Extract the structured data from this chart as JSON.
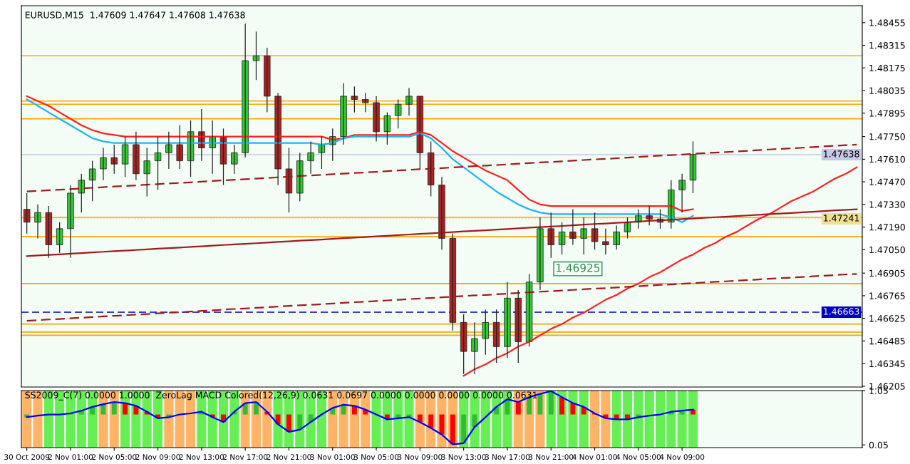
{
  "chart_data": [
    {
      "type": "candlestick",
      "title": "EURUSD,M15  1.47609 1.47647 1.47608 1.47638",
      "tick_labels": "y",
      "grid": false,
      "legend": false,
      "categories": [
        null,
        null,
        null,
        null,
        null,
        null,
        null,
        null,
        null,
        null,
        null,
        null,
        null,
        null,
        null,
        null,
        null,
        null,
        null,
        null,
        null,
        null,
        null,
        null,
        null,
        null,
        null,
        null,
        null,
        null,
        null,
        null,
        null,
        null,
        null,
        null,
        null,
        null,
        null,
        null,
        null,
        null,
        null,
        null,
        null,
        null,
        null,
        null,
        null,
        null,
        null,
        null,
        null,
        null,
        null,
        null,
        null,
        null,
        null,
        null,
        null,
        null,
        null,
        null,
        null,
        null,
        null,
        null,
        null,
        null,
        null,
        null,
        null,
        null,
        null,
        null,
        null
      ],
      "ohlc": [
        [
          1.473,
          1.474,
          1.4715,
          1.4722
        ],
        [
          1.4722,
          1.4733,
          1.4712,
          1.4728
        ],
        [
          1.4728,
          1.4732,
          1.47,
          1.4708
        ],
        [
          1.4708,
          1.4722,
          1.4703,
          1.4718
        ],
        [
          1.4718,
          1.4745,
          1.47,
          1.474
        ],
        [
          1.474,
          1.4752,
          1.4728,
          1.4748
        ],
        [
          1.4748,
          1.476,
          1.4735,
          1.4755
        ],
        [
          1.4755,
          1.4768,
          1.4748,
          1.4762
        ],
        [
          1.4762,
          1.477,
          1.4752,
          1.4758
        ],
        [
          1.4758,
          1.4775,
          1.475,
          1.477
        ],
        [
          1.477,
          1.4778,
          1.4748,
          1.4752
        ],
        [
          1.4752,
          1.4768,
          1.4738,
          1.476
        ],
        [
          1.476,
          1.4775,
          1.4742,
          1.4765
        ],
        [
          1.4765,
          1.4778,
          1.4755,
          1.477
        ],
        [
          1.477,
          1.4782,
          1.4755,
          1.476
        ],
        [
          1.476,
          1.4785,
          1.475,
          1.4778
        ],
        [
          1.4778,
          1.4792,
          1.476,
          1.4768
        ],
        [
          1.4768,
          1.4785,
          1.4752,
          1.4775
        ],
        [
          1.4775,
          1.478,
          1.4745,
          1.4758
        ],
        [
          1.4758,
          1.477,
          1.4752,
          1.4765
        ],
        [
          1.4765,
          1.4845,
          1.4762,
          1.4822
        ],
        [
          1.4822,
          1.484,
          1.481,
          1.4825
        ],
        [
          1.4825,
          1.483,
          1.479,
          1.48
        ],
        [
          1.48,
          1.4802,
          1.4745,
          1.4755
        ],
        [
          1.4755,
          1.4768,
          1.4728,
          1.474
        ],
        [
          1.474,
          1.4765,
          1.4735,
          1.476
        ],
        [
          1.476,
          1.4772,
          1.4752,
          1.4765
        ],
        [
          1.4765,
          1.4775,
          1.4755,
          1.477
        ],
        [
          1.477,
          1.478,
          1.476,
          1.4775
        ],
        [
          1.4775,
          1.4808,
          1.477,
          1.48
        ],
        [
          1.48,
          1.4806,
          1.479,
          1.4798
        ],
        [
          1.4798,
          1.4802,
          1.479,
          1.4796
        ],
        [
          1.4796,
          1.48,
          1.4772,
          1.4778
        ],
        [
          1.4778,
          1.479,
          1.477,
          1.4788
        ],
        [
          1.4788,
          1.4798,
          1.478,
          1.4795
        ],
        [
          1.4795,
          1.4805,
          1.4788,
          1.48
        ],
        [
          1.48,
          1.48,
          1.4755,
          1.4765
        ],
        [
          1.4765,
          1.4772,
          1.4738,
          1.4745
        ],
        [
          1.4745,
          1.475,
          1.4705,
          1.4712
        ],
        [
          1.4712,
          1.4715,
          1.4655,
          1.466
        ],
        [
          1.466,
          1.4665,
          1.4628,
          1.4642
        ],
        [
          1.4642,
          1.466,
          1.4628,
          1.465
        ],
        [
          1.465,
          1.4668,
          1.464,
          1.466
        ],
        [
          1.466,
          1.4668,
          1.4635,
          1.4645
        ],
        [
          1.4645,
          1.4685,
          1.4638,
          1.4675
        ],
        [
          1.4675,
          1.468,
          1.4635,
          1.4648
        ],
        [
          1.4648,
          1.469,
          1.4645,
          1.4685
        ],
        [
          1.4685,
          1.4725,
          1.468,
          1.4718
        ],
        [
          1.4718,
          1.4728,
          1.47,
          1.4708
        ],
        [
          1.4708,
          1.4722,
          1.4702,
          1.4716
        ],
        [
          1.4716,
          1.473,
          1.4708,
          1.4712
        ],
        [
          1.4712,
          1.4725,
          1.4702,
          1.4718
        ],
        [
          1.4718,
          1.4728,
          1.4705,
          1.471
        ],
        [
          1.471,
          1.4718,
          1.4702,
          1.4708
        ],
        [
          1.4708,
          1.472,
          1.4705,
          1.4716
        ],
        [
          1.4716,
          1.4725,
          1.4712,
          1.4722
        ],
        [
          1.4722,
          1.473,
          1.4718,
          1.4726
        ],
        [
          1.4726,
          1.4732,
          1.472,
          1.4724
        ],
        [
          1.4724,
          1.473,
          1.4718,
          1.4722
        ],
        [
          1.4722,
          1.4748,
          1.4718,
          1.4742
        ],
        [
          1.4742,
          1.4752,
          1.4728,
          1.4748
        ],
        [
          1.4748,
          1.4772,
          1.474,
          1.4764
        ],
        null,
        null,
        null,
        null,
        null,
        null,
        null,
        null,
        null,
        null,
        null,
        null,
        null,
        null,
        null
      ],
      "colors": [
        "#b22222",
        "#33cc33",
        "#b22222",
        "#33cc33",
        "#33cc33",
        "#33cc33",
        "#33cc33",
        "#33cc33",
        "#b22222",
        "#33cc33",
        "#b22222",
        "#33cc33",
        "#33cc33",
        "#33cc33",
        "#b22222",
        "#33cc33",
        "#b22222",
        "#33cc33",
        "#b22222",
        "#33cc33",
        "#33cc33",
        "#33cc33",
        "#b22222",
        "#b22222",
        "#b22222",
        "#33cc33",
        "#33cc33",
        "#33cc33",
        "#33cc33",
        "#33cc33",
        "#b22222",
        "#b22222",
        "#b22222",
        "#33cc33",
        "#33cc33",
        "#33cc33",
        "#b22222",
        "#b22222",
        "#b22222",
        "#b22222",
        "#b22222",
        "#33cc33",
        "#33cc33",
        "#b22222",
        "#33cc33",
        "#b22222",
        "#33cc33",
        "#33cc33",
        "#b22222",
        "#33cc33",
        "#b22222",
        "#33cc33",
        "#b22222",
        "#b22222",
        "#33cc33",
        "#33cc33",
        "#33cc33",
        "#b22222",
        "#b22222",
        "#33cc33",
        "#33cc33",
        "#33cc33",
        null,
        null,
        null,
        null,
        null,
        null,
        null,
        null,
        null,
        null,
        null,
        null,
        null,
        null,
        null
      ],
      "series": [
        {
          "type": "line",
          "color": "#ff2020",
          "values": [
            1.48,
            1.4797,
            1.4794,
            1.479,
            1.4786,
            1.4782,
            1.4779,
            1.4777,
            1.4776,
            1.4775,
            1.4775,
            1.4775,
            1.4775,
            1.4775,
            1.4775,
            1.4775,
            1.4775,
            1.4775,
            1.4775,
            1.4775,
            1.4775,
            1.4775,
            1.4775,
            1.4775,
            1.4775,
            1.4775,
            1.4775,
            1.4775,
            1.4773,
            1.4774,
            1.4776,
            1.4776,
            1.4776,
            1.4776,
            1.4776,
            1.4776,
            1.4778,
            1.4776,
            1.4771,
            1.4766,
            1.4762,
            1.4758,
            1.4754,
            1.4751,
            1.4748,
            1.4742,
            1.4736,
            1.4733,
            1.4732,
            1.4732,
            1.4732,
            1.4732,
            1.4732,
            1.4732,
            1.4732,
            1.4732,
            1.4732,
            1.4732,
            1.4732,
            1.4732,
            1.4729,
            1.473,
            null,
            null,
            null,
            null,
            null,
            null,
            null,
            null,
            null,
            null,
            null,
            null,
            null,
            null,
            null
          ]
        },
        {
          "type": "line",
          "color": "#1eb4f0",
          "values": [
            1.4798,
            1.4794,
            1.479,
            1.4786,
            1.4782,
            1.4778,
            1.4774,
            1.4772,
            1.4771,
            1.4771,
            1.4771,
            1.4771,
            1.4771,
            1.4771,
            1.4771,
            1.4771,
            1.4771,
            1.4771,
            1.4771,
            1.4771,
            1.4771,
            1.4771,
            1.4771,
            1.4771,
            1.4771,
            1.4771,
            1.4771,
            1.477,
            1.4771,
            1.4774,
            1.4775,
            1.4775,
            1.4775,
            1.4775,
            1.4775,
            1.4775,
            1.4777,
            1.4774,
            1.4768,
            1.4761,
            1.4756,
            1.4751,
            1.4746,
            1.4741,
            1.4737,
            1.4733,
            1.473,
            1.4728,
            1.4727,
            1.4727,
            1.4727,
            1.4727,
            1.4727,
            1.4727,
            1.4727,
            1.4727,
            1.4727,
            1.4727,
            1.4727,
            1.4725,
            1.4722,
            1.4726,
            null,
            null,
            null,
            null,
            null,
            null,
            null,
            null,
            null,
            null,
            null,
            null,
            null,
            null,
            null
          ]
        },
        {
          "type": "line",
          "color": "#ff2020",
          "values": [
            null,
            null,
            null,
            null,
            null,
            null,
            null,
            null,
            null,
            null,
            null,
            null,
            null,
            null,
            null,
            null,
            null,
            null,
            null,
            null,
            null,
            null,
            null,
            null,
            null,
            null,
            null,
            null,
            null,
            null,
            null,
            null,
            null,
            null,
            null,
            null,
            null,
            null,
            null,
            null,
            1.4627,
            1.4631,
            1.4634,
            1.4638,
            1.4641,
            1.4645,
            1.4648,
            1.4652,
            1.4656,
            1.4659,
            1.4663,
            1.4666,
            1.467,
            1.4674,
            1.4677,
            1.4681,
            1.4684,
            1.4688,
            1.4691,
            1.4695,
            1.4699,
            1.4702,
            1.4706,
            1.4709,
            1.4713,
            1.4716,
            1.472,
            1.4724,
            1.4727,
            1.4731,
            1.4735,
            1.4738,
            1.4741,
            1.4745,
            1.4749,
            1.4752,
            1.4756
          ]
        },
        {
          "type": "line",
          "color": "#a01c1c",
          "values": [
            1.4701,
            1.47014,
            1.47018,
            1.47021,
            1.47025,
            1.47029,
            1.47033,
            1.47037,
            1.47041,
            1.47044,
            1.47048,
            1.47052,
            1.47056,
            1.4706,
            1.47063,
            1.47067,
            1.47071,
            1.47075,
            1.47079,
            1.47083,
            1.47086,
            1.4709,
            1.47094,
            1.47098,
            1.47102,
            1.47106,
            1.47109,
            1.47113,
            1.47117,
            1.47121,
            1.47125,
            1.47128,
            1.47132,
            1.47136,
            1.4714,
            1.47144,
            1.47148,
            1.47151,
            1.47155,
            1.47159,
            1.47163,
            1.47167,
            1.4717,
            1.47174,
            1.47178,
            1.47182,
            1.47186,
            1.4719,
            1.47193,
            1.47197,
            1.47201,
            1.47205,
            1.47209,
            1.47212,
            1.47216,
            1.4722,
            1.47224,
            1.47228,
            1.47232,
            1.47235,
            1.47239,
            1.47243,
            1.47247,
            1.47251,
            1.47254,
            1.47258,
            1.47262,
            1.47266,
            1.4727,
            1.47274,
            1.47277,
            1.47281,
            1.47285,
            1.47289,
            1.47293,
            1.47297,
            1.473
          ]
        },
        {
          "type": "line",
          "color": "#a01c1c",
          "line_style": "dashed",
          "values": [
            1.4741,
            1.47414,
            1.47418,
            1.47421,
            1.47425,
            1.47429,
            1.47433,
            1.47437,
            1.47441,
            1.47444,
            1.47448,
            1.47452,
            1.47456,
            1.4746,
            1.47463,
            1.47467,
            1.47471,
            1.47475,
            1.47479,
            1.47483,
            1.47486,
            1.4749,
            1.47494,
            1.47498,
            1.47502,
            1.47506,
            1.47509,
            1.47513,
            1.47517,
            1.47521,
            1.47525,
            1.47528,
            1.47532,
            1.47536,
            1.4754,
            1.47544,
            1.47548,
            1.47551,
            1.47555,
            1.47559,
            1.47563,
            1.47567,
            1.4757,
            1.47574,
            1.47578,
            1.47582,
            1.47586,
            1.4759,
            1.47593,
            1.47597,
            1.47601,
            1.47605,
            1.47609,
            1.47612,
            1.47616,
            1.4762,
            1.47624,
            1.47628,
            1.47632,
            1.47635,
            1.47639,
            1.47643,
            1.47647,
            1.47651,
            1.47654,
            1.47658,
            1.47662,
            1.47666,
            1.4767,
            1.47674,
            1.47677,
            1.47681,
            1.47685,
            1.47689,
            1.47693,
            1.47697,
            1.477
          ]
        },
        {
          "type": "line",
          "color": "#a01c1c",
          "line_style": "dashed",
          "values": [
            1.4661,
            1.46614,
            1.46618,
            1.46621,
            1.46625,
            1.46629,
            1.46633,
            1.46637,
            1.46641,
            1.46644,
            1.46648,
            1.46652,
            1.46656,
            1.4666,
            1.46663,
            1.46667,
            1.46671,
            1.46675,
            1.46679,
            1.46683,
            1.46686,
            1.4669,
            1.46694,
            1.46698,
            1.46702,
            1.46706,
            1.46709,
            1.46713,
            1.46717,
            1.46721,
            1.46725,
            1.46728,
            1.46732,
            1.46736,
            1.4674,
            1.46744,
            1.46748,
            1.46751,
            1.46755,
            1.46759,
            1.46763,
            1.46767,
            1.4677,
            1.46774,
            1.46778,
            1.46782,
            1.46786,
            1.4679,
            1.46793,
            1.46797,
            1.46801,
            1.46805,
            1.46809,
            1.46812,
            1.46816,
            1.4682,
            1.46824,
            1.46828,
            1.46832,
            1.46835,
            1.46839,
            1.46843,
            1.46847,
            1.46851,
            1.46854,
            1.46858,
            1.46862,
            1.46866,
            1.4687,
            1.46874,
            1.46877,
            1.46881,
            1.46885,
            1.46889,
            1.46893,
            1.46897,
            1.469
          ]
        }
      ],
      "ylim": [
        1.462,
        1.4856
      ],
      "yticks": [
        {
          "value": 1.48455,
          "label": "1.48455"
        },
        {
          "value": 1.48315,
          "label": "1.48315"
        },
        {
          "value": 1.48175,
          "label": "1.48175"
        },
        {
          "value": 1.48035,
          "label": "1.48035"
        },
        {
          "value": 1.47895,
          "label": "1.47895"
        },
        {
          "value": 1.4775,
          "label": "1.47750"
        },
        {
          "value": 1.4761,
          "label": "1.47610"
        },
        {
          "value": 1.4747,
          "label": "1.47470"
        },
        {
          "value": 1.4733,
          "label": "1.47330"
        },
        {
          "value": 1.4719,
          "label": "1.47190"
        },
        {
          "value": 1.4705,
          "label": "1.47050"
        },
        {
          "value": 1.46905,
          "label": "1.46905"
        },
        {
          "value": 1.46765,
          "label": "1.46765"
        },
        {
          "value": 1.46625,
          "label": "1.46625"
        },
        {
          "value": 1.46485,
          "label": "1.46485"
        },
        {
          "value": 1.46345,
          "label": "1.46345"
        },
        {
          "value": 1.46205,
          "label": "1.46205"
        }
      ],
      "ref_lines": [
        {
          "axis": "y",
          "value": 1.4825,
          "color": "#ffa500"
        },
        {
          "axis": "y",
          "value": 1.4797,
          "color": "#ffa500"
        },
        {
          "axis": "y",
          "value": 1.4795,
          "color": "#ffa500"
        },
        {
          "axis": "y",
          "value": 1.4786,
          "color": "#ffa500"
        },
        {
          "axis": "y",
          "value": 1.4725,
          "color": "#ffa500"
        },
        {
          "axis": "y",
          "value": 1.4713,
          "color": "#ffa500"
        },
        {
          "axis": "y",
          "value": 1.4684,
          "color": "#ffa500"
        },
        {
          "axis": "y",
          "value": 1.4659,
          "color": "#ffa500"
        },
        {
          "axis": "y",
          "value": 1.4654,
          "color": "#ffa500"
        },
        {
          "axis": "y",
          "value": 1.4652,
          "color": "#ffa500"
        },
        {
          "axis": "y",
          "value": 1.47638,
          "label": "1.47638",
          "color": "#c8c8e8"
        },
        {
          "axis": "y",
          "value": 1.47241,
          "label": "1.47241",
          "color": "#f0e090",
          "line_style": "dotted"
        },
        {
          "axis": "y",
          "value": 1.46663,
          "label": "1.46663",
          "color": "#0000c0",
          "line_style": "dashed"
        }
      ],
      "annotations": [
        "1.46925"
      ]
    },
    {
      "type": "bar",
      "title": "SS2009_C(7) 0.0000 1.0000  ZeroLag MACD Colored(12,26,9) 0.0631 0.0697 0.0000 0.0000 0.0000 0.0000 0.0631",
      "grid": false,
      "legend": false,
      "categories": [
        "30 Oct 2009",
        null,
        null,
        null,
        "2 Nov 01:00",
        null,
        null,
        null,
        "2 Nov 05:00",
        null,
        null,
        null,
        "2 Nov 09:00",
        null,
        null,
        null,
        "2 Nov 13:00",
        null,
        null,
        null,
        "2 Nov 17:00",
        null,
        null,
        null,
        "2 Nov 21:00",
        null,
        null,
        null,
        "3 Nov 01:00",
        null,
        null,
        null,
        "3 Nov 05:00",
        null,
        null,
        null,
        "3 Nov 09:00",
        null,
        null,
        null,
        "3 Nov 13:00",
        null,
        null,
        null,
        "3 Nov 17:00",
        null,
        null,
        null,
        "3 Nov 21:00",
        null,
        null,
        null,
        "4 Nov 01:00",
        null,
        null,
        null,
        "4 Nov 05:00",
        null,
        null,
        null,
        "4 Nov 09:00",
        null,
        null,
        null,
        null,
        null,
        null,
        null,
        null,
        null,
        null,
        null,
        null,
        null,
        null,
        null,
        null
      ],
      "ylim": [
        0,
        1.05
      ],
      "yticks": [
        {
          "value": 1.05,
          "label": "1.05"
        },
        {
          "value": 0.05,
          "label": "0.05"
        }
      ],
      "series": [
        {
          "type": "bar",
          "values": [
            1.05,
            1.05,
            1.05,
            1.05,
            1.05,
            1.05,
            1.05,
            1.05,
            1.05,
            1.05,
            1.05,
            1.05,
            1.05,
            1.05,
            1.05,
            1.05,
            1.05,
            1.05,
            1.05,
            1.05,
            1.05,
            1.05,
            1.05,
            1.05,
            1.05,
            1.05,
            1.05,
            1.05,
            1.05,
            1.05,
            1.05,
            1.05,
            1.05,
            1.05,
            1.05,
            1.05,
            1.05,
            1.05,
            1.05,
            1.05,
            1.05,
            1.05,
            1.05,
            1.05,
            1.05,
            1.05,
            1.05,
            1.05,
            1.05,
            1.05,
            1.05,
            1.05,
            1.05,
            1.05,
            1.05,
            1.05,
            1.05,
            1.05,
            1.05,
            1.05,
            1.05,
            1.05,
            null,
            null,
            null,
            null,
            null,
            null,
            null,
            null,
            null,
            null,
            null,
            null,
            null,
            null,
            null
          ],
          "colors": [
            "#ffb366",
            "#ffb366",
            "#66ee55",
            "#66ee55",
            "#66ee55",
            "#66ee55",
            "#66ee55",
            "#ffb366",
            "#ffb366",
            "#66ee55",
            "#66ee55",
            "#66ee55",
            "#66ee55",
            "#ffb366",
            "#ffb366",
            "#ffb366",
            "#66ee55",
            "#66ee55",
            "#66ee55",
            "#66ee55",
            "#ffb366",
            "#ffb366",
            "#ffb366",
            "#66ee55",
            "#66ee55",
            "#66ee55",
            "#66ee55",
            "#66ee55",
            "#ffb366",
            "#ffb366",
            "#ffb366",
            "#ffb366",
            "#66ee55",
            "#66ee55",
            "#66ee55",
            "#66ee55",
            "#ffb366",
            "#ffb366",
            "#ffb366",
            "#ffb366",
            "#66ee55",
            "#66ee55",
            "#66ee55",
            "#66ee55",
            "#66ee55",
            "#ffb366",
            "#ffb366",
            "#ffb366",
            "#66ee55",
            "#66ee55",
            "#66ee55",
            "#66ee55",
            "#ffb366",
            "#ffb366",
            "#66ee55",
            "#66ee55",
            "#66ee55",
            "#66ee55",
            "#66ee55",
            "#66ee55",
            "#66ee55",
            "#66ee55",
            null,
            null,
            null,
            null,
            null,
            null,
            null,
            null,
            null,
            null,
            null,
            null,
            null,
            null,
            null
          ]
        },
        {
          "type": "bar",
          "base": [
            0.61,
            null,
            null,
            null,
            0.61,
            0.61,
            0.61,
            0.61,
            0.61,
            0.61,
            0.61,
            0.61,
            0.61,
            0.61,
            null,
            null,
            0.61,
            0.61,
            0.61,
            0.61,
            0.61,
            0.61,
            0.61,
            0.61,
            0.61,
            0.61,
            0.61,
            null,
            0.61,
            0.61,
            0.61,
            0.61,
            null,
            0.61,
            0.61,
            0.61,
            0.61,
            0.61,
            0.61,
            0.61,
            0.61,
            0.61,
            null,
            0.61,
            0.61,
            0.61,
            0.61,
            0.61,
            0.61,
            0.61,
            0.61,
            0.61,
            0.61,
            0.61,
            0.61,
            0.61,
            0.61,
            null,
            null,
            0.61,
            0.61,
            0.61,
            null,
            null,
            null,
            null,
            null,
            null,
            null,
            null,
            null,
            null,
            null,
            null,
            null,
            null,
            null
          ],
          "values": [
            -0.05,
            null,
            null,
            null,
            0.02,
            0.07,
            0.14,
            0.19,
            0.23,
            0.21,
            0.16,
            0.05,
            -0.07,
            -0.05,
            null,
            null,
            0.05,
            -0.05,
            -0.14,
            0.05,
            0.21,
            0.23,
            0.05,
            -0.18,
            -0.32,
            -0.28,
            -0.14,
            null,
            0.12,
            0.18,
            0.16,
            0.09,
            null,
            -0.09,
            -0.07,
            -0.05,
            -0.14,
            -0.25,
            -0.37,
            -0.55,
            -0.53,
            -0.23,
            null,
            0.14,
            0.28,
            0.23,
            0.32,
            0.38,
            0.43,
            0.32,
            0.21,
            0.14,
            0.02,
            -0.07,
            -0.09,
            -0.09,
            -0.05,
            null,
            null,
            0.05,
            0.07,
            0.09,
            null,
            null,
            null,
            null,
            null,
            null,
            null,
            null,
            null,
            null,
            null,
            null,
            null,
            null,
            null
          ],
          "colors": [
            "#33bb33",
            "#33bb33",
            "#33bb33",
            "#33bb33",
            "#33bb33",
            "#33bb33",
            "#33bb33",
            "#33bb33",
            "#33bb33",
            "#ff0000",
            "#ff0000",
            "#ff0000",
            "#ff0000",
            "#33bb33",
            "#33bb33",
            "#33bb33",
            "#33bb33",
            "#ff0000",
            "#ff0000",
            "#33bb33",
            "#33bb33",
            "#33bb33",
            "#ff0000",
            "#ff0000",
            "#ff0000",
            "#33bb33",
            "#33bb33",
            "#33bb33",
            "#33bb33",
            "#33bb33",
            "#ff0000",
            "#ff0000",
            "#ff0000",
            "#ff0000",
            "#33bb33",
            "#33bb33",
            "#ff0000",
            "#ff0000",
            "#ff0000",
            "#ff0000",
            "#33bb33",
            "#33bb33",
            "#33bb33",
            "#33bb33",
            "#33bb33",
            "#ff0000",
            "#33bb33",
            "#33bb33",
            "#33bb33",
            "#ff0000",
            "#ff0000",
            "#ff0000",
            "#ff0000",
            "#ff0000",
            "#ff0000",
            "#ff0000",
            "#33bb33",
            "#33bb33",
            "#33bb33",
            "#33bb33",
            "#33bb33",
            "#ff0000",
            null,
            null,
            null,
            null,
            null,
            null,
            null,
            null,
            null,
            null,
            null,
            null,
            null,
            null,
            null
          ]
        },
        {
          "type": "line",
          "color": "#0000ff",
          "values": [
            0.56,
            0.59,
            0.61,
            0.61,
            0.63,
            0.68,
            0.75,
            0.8,
            0.84,
            0.82,
            0.77,
            0.66,
            0.54,
            0.56,
            0.61,
            0.63,
            0.66,
            0.56,
            0.47,
            0.66,
            0.82,
            0.84,
            0.66,
            0.43,
            0.29,
            0.33,
            0.47,
            0.61,
            0.73,
            0.79,
            0.77,
            0.7,
            0.61,
            0.52,
            0.54,
            0.56,
            0.47,
            0.36,
            0.24,
            0.06,
            0.08,
            0.38,
            0.56,
            0.75,
            0.89,
            0.84,
            0.93,
            0.99,
            1.04,
            0.93,
            0.82,
            0.75,
            0.63,
            0.54,
            0.52,
            0.52,
            0.56,
            0.59,
            0.61,
            0.66,
            0.68,
            0.7,
            null,
            null,
            null,
            null,
            null,
            null,
            null,
            null,
            null,
            null,
            null,
            null,
            null,
            null,
            null
          ]
        }
      ]
    }
  ]
}
